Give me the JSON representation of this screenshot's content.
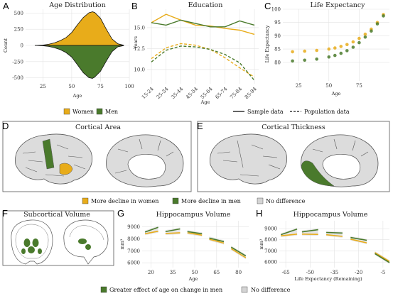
{
  "colors": {
    "women": "#E8AC1A",
    "men": "#4A7A2C",
    "no_difference": "#D4D4D4",
    "brain_fill": "#DCDCDC",
    "brain_line": "#555555",
    "grid": "#E3E3E3"
  },
  "panel_letters": [
    "A",
    "B",
    "C",
    "D",
    "E",
    "F",
    "G",
    "H"
  ],
  "legends": {
    "sex": {
      "women": "Women",
      "men": "Men"
    },
    "data_type": {
      "sample": "Sample data",
      "population": "Population data"
    },
    "decline": {
      "women": "More decline in women",
      "men": "More decline in men",
      "none": "No difference"
    },
    "age_effect": {
      "men": "Greater effect of age on change in men",
      "none": "No difference"
    }
  },
  "brain_panels": {
    "D": {
      "title": "Cortical Area"
    },
    "E": {
      "title": "Cortical Thickness"
    },
    "F": {
      "title": "Subcortical Volume"
    }
  },
  "chart_data": [
    {
      "id": "A",
      "type": "area",
      "title": "Age Distribution",
      "xlabel": "Age",
      "ylabel": "Count",
      "xlim": [
        10,
        100
      ],
      "ylim": [
        -560,
        560
      ],
      "xticks": [
        25,
        50,
        75,
        100
      ],
      "yticks": [
        500,
        250,
        0,
        -250,
        -500
      ],
      "ytick_labels": [
        "500",
        "250",
        "0",
        "-250",
        "-500"
      ],
      "grid": true,
      "series": [
        {
          "name": "Women",
          "color": "#E8AC1A",
          "x": [
            18,
            25,
            30,
            35,
            40,
            45,
            50,
            55,
            60,
            65,
            68,
            70,
            75,
            80,
            85,
            90,
            95
          ],
          "values": [
            0,
            5,
            18,
            40,
            75,
            120,
            200,
            320,
            430,
            505,
            520,
            510,
            420,
            250,
            100,
            25,
            3
          ]
        },
        {
          "name": "Men",
          "color": "#4A7A2C",
          "x": [
            18,
            25,
            30,
            35,
            40,
            45,
            50,
            55,
            60,
            65,
            68,
            70,
            75,
            80,
            85,
            90,
            95
          ],
          "values": [
            0,
            -5,
            -15,
            -35,
            -65,
            -110,
            -180,
            -300,
            -420,
            -500,
            -510,
            -490,
            -400,
            -240,
            -95,
            -22,
            -3
          ]
        }
      ]
    },
    {
      "id": "B",
      "type": "line",
      "title": "Education",
      "xlabel": "Age",
      "ylabel": "Years",
      "categories": [
        "15-24",
        "25-34",
        "35-44",
        "45-54",
        "55-64",
        "65-74",
        "75-84",
        "85-94"
      ],
      "ylim": [
        8.3,
        17.2
      ],
      "yticks": [
        10.0,
        12.5,
        15.0
      ],
      "ytick_labels": [
        "10.0",
        "12.5",
        "15.0"
      ],
      "grid": true,
      "series": [
        {
          "name": "Women",
          "kind": "sample",
          "color": "#E8AC1A",
          "values": [
            15.6,
            16.6,
            15.9,
            15.3,
            15.2,
            14.9,
            14.7,
            14.2
          ]
        },
        {
          "name": "Men",
          "kind": "sample",
          "color": "#4A7A2C",
          "values": [
            15.6,
            15.3,
            15.9,
            15.5,
            15.1,
            15.1,
            15.8,
            15.3
          ]
        },
        {
          "name": "Women",
          "kind": "population",
          "color": "#E8AC1A",
          "values": [
            11.3,
            12.6,
            13.1,
            12.9,
            12.4,
            11.4,
            10.2,
            9.1
          ]
        },
        {
          "name": "Men",
          "kind": "population",
          "color": "#4A7A2C",
          "values": [
            10.9,
            12.3,
            12.8,
            12.7,
            12.4,
            11.8,
            10.8,
            8.7
          ]
        }
      ]
    },
    {
      "id": "C",
      "type": "scatter",
      "title": "Life Expectancy",
      "xlabel": "Age",
      "ylabel": "Life Expectancy",
      "xlim": [
        12,
        100
      ],
      "ylim": [
        73,
        100
      ],
      "xticks": [
        25,
        50,
        75
      ],
      "yticks": [
        80,
        85,
        90,
        95,
        100
      ],
      "grid": true,
      "series": [
        {
          "name": "Women",
          "color": "#E8AC1A",
          "x": [
            20,
            30,
            40,
            50,
            55,
            60,
            65,
            70,
            75,
            80,
            85,
            90,
            95
          ],
          "values": [
            84,
            84.2,
            84.5,
            85,
            85.4,
            86,
            86.7,
            87.7,
            89,
            90.6,
            92.5,
            95,
            98
          ]
        },
        {
          "name": "Men",
          "color": "#4A7A2C",
          "x": [
            20,
            30,
            40,
            50,
            55,
            60,
            65,
            70,
            75,
            80,
            85,
            90,
            95
          ],
          "values": [
            80.5,
            80.8,
            81.2,
            82,
            82.6,
            83.4,
            84.4,
            85.7,
            87.4,
            89.5,
            91.8,
            94.5,
            97.5
          ]
        }
      ]
    },
    {
      "id": "G",
      "type": "line",
      "title": "Hippocampus Volume",
      "xlabel": "Age",
      "ylabel": "mm³",
      "xlim": [
        14,
        87
      ],
      "ylim": [
        5600,
        9500
      ],
      "xticks": [
        20,
        35,
        50,
        65,
        80
      ],
      "yticks": [
        6000,
        7000,
        8000,
        9000
      ],
      "grid": true,
      "segments": [
        {
          "x": [
            16,
            25
          ],
          "women": [
            8420,
            8630
          ],
          "men": [
            8560,
            8950
          ]
        },
        {
          "x": [
            30,
            40
          ],
          "women": [
            8440,
            8500
          ],
          "men": [
            8600,
            8820
          ]
        },
        {
          "x": [
            45,
            55
          ],
          "women": [
            8500,
            8300
          ],
          "men": [
            8600,
            8420
          ]
        },
        {
          "x": [
            60,
            70
          ],
          "women": [
            7960,
            7640
          ],
          "men": [
            8060,
            7760
          ]
        },
        {
          "x": [
            75,
            85
          ],
          "women": [
            7180,
            6420
          ],
          "men": [
            7300,
            6570
          ]
        }
      ]
    },
    {
      "id": "H",
      "type": "line",
      "title": "Hippocampus Volume",
      "xlabel": "Life Expectancy (Remaining)",
      "ylabel": "mm³",
      "xlim": [
        -69,
        -1
      ],
      "ylim": [
        5500,
        9700
      ],
      "xticks": [
        -65,
        -50,
        -35,
        -20,
        -5
      ],
      "grid": true,
      "segments": [
        {
          "x": [
            -68,
            -58
          ],
          "women": [
            8350,
            8500
          ],
          "men": [
            8450,
            8950
          ]
        },
        {
          "x": [
            -55,
            -45
          ],
          "women": [
            8500,
            8480
          ],
          "men": [
            8700,
            8900
          ]
        },
        {
          "x": [
            -40,
            -30
          ],
          "women": [
            8450,
            8300
          ],
          "men": [
            8650,
            8600
          ]
        },
        {
          "x": [
            -25,
            -15
          ],
          "women": [
            8050,
            7720
          ],
          "men": [
            8200,
            7950
          ]
        },
        {
          "x": [
            -10,
            -1
          ],
          "women": [
            6850,
            6050
          ],
          "men": [
            6750,
            5950
          ]
        }
      ]
    }
  ]
}
